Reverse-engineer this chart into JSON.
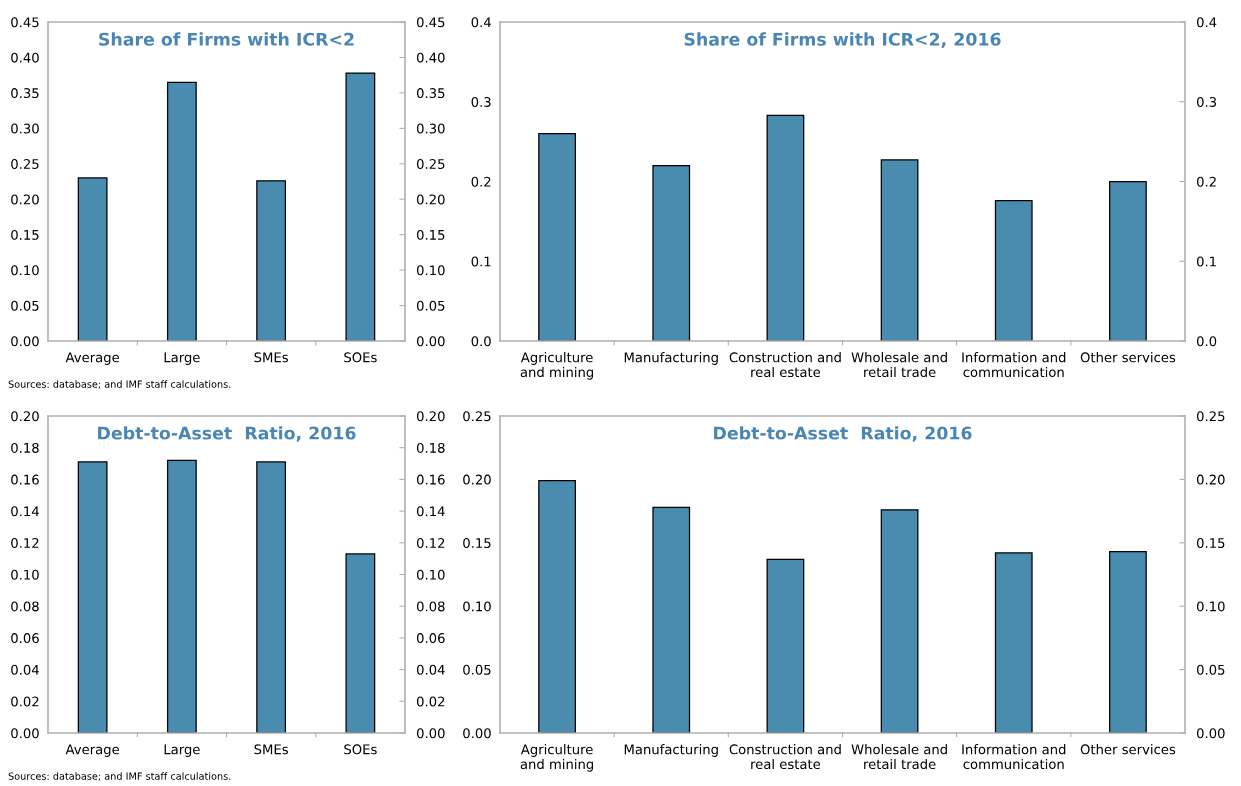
{
  "chart_data": [
    {
      "type": "bar",
      "title": "Share of Firms with ICR<2",
      "categories": [
        "Average",
        "Large",
        "SMEs",
        "SOEs"
      ],
      "values": [
        0.23,
        0.365,
        0.226,
        0.378
      ],
      "color": "#4a8bb0",
      "ylim": [
        0,
        0.45
      ],
      "yticks": [
        {
          "value": 0,
          "label": "0.00"
        },
        {
          "value": 0.05,
          "label": "0.05"
        },
        {
          "value": 0.1,
          "label": "0.10"
        },
        {
          "value": 0.15,
          "label": "0.15"
        },
        {
          "value": 0.2,
          "label": "0.20"
        },
        {
          "value": 0.25,
          "label": "0.25"
        },
        {
          "value": 0.3,
          "label": "0.30"
        },
        {
          "value": 0.35,
          "label": "0.35"
        },
        {
          "value": 0.4,
          "label": "0.40"
        },
        {
          "value": 0.45,
          "label": "0.45"
        }
      ],
      "y2lim": [
        0,
        0.45
      ],
      "y2ticks": [
        {
          "value": 0,
          "label": "0.00"
        },
        {
          "value": 0.05,
          "label": "0.05"
        },
        {
          "value": 0.1,
          "label": "0.10"
        },
        {
          "value": 0.15,
          "label": "0.15"
        },
        {
          "value": 0.2,
          "label": "0.20"
        },
        {
          "value": 0.25,
          "label": "0.25"
        },
        {
          "value": 0.3,
          "label": "0.30"
        },
        {
          "value": 0.35,
          "label": "0.35"
        },
        {
          "value": 0.4,
          "label": "0.40"
        },
        {
          "value": 0.45,
          "label": "0.45"
        }
      ],
      "annotations": [
        "Sources: database; and IMF staff calculations."
      ]
    },
    {
      "type": "bar",
      "title": "Share of Firms with ICR<2, 2016",
      "categories": [
        "Agriculture\nand mining",
        "Manufacturing",
        "Construction and\nreal estate",
        "Wholesale and\nretail trade",
        "Information and\ncommunication",
        "Other services"
      ],
      "values": [
        0.26,
        0.22,
        0.283,
        0.227,
        0.176,
        0.2
      ],
      "color": "#4a8bb0",
      "ylim": [
        0,
        0.4
      ],
      "yticks": [
        {
          "value": 0,
          "label": "0.0"
        },
        {
          "value": 0.1,
          "label": "0.1"
        },
        {
          "value": 0.2,
          "label": "0.2"
        },
        {
          "value": 0.3,
          "label": "0.3"
        },
        {
          "value": 0.4,
          "label": "0.4"
        }
      ],
      "y2lim": [
        0,
        0.4
      ],
      "y2ticks": [
        {
          "value": 0,
          "label": "0.0"
        },
        {
          "value": 0.1,
          "label": "0.1"
        },
        {
          "value": 0.2,
          "label": "0.2"
        },
        {
          "value": 0.3,
          "label": "0.3"
        },
        {
          "value": 0.4,
          "label": "0.4"
        }
      ]
    },
    {
      "type": "bar",
      "title": "Debt-to-Asset  Ratio, 2016",
      "categories": [
        "Average",
        "Large",
        "SMEs",
        "SOEs"
      ],
      "values": [
        0.171,
        0.172,
        0.171,
        0.113
      ],
      "color": "#4a8bb0",
      "ylim": [
        0,
        0.2
      ],
      "yticks": [
        {
          "value": 0,
          "label": "0.00"
        },
        {
          "value": 0.02,
          "label": "0.02"
        },
        {
          "value": 0.04,
          "label": "0.04"
        },
        {
          "value": 0.06,
          "label": "0.06"
        },
        {
          "value": 0.08,
          "label": "0.08"
        },
        {
          "value": 0.1,
          "label": "0.10"
        },
        {
          "value": 0.12,
          "label": "0.12"
        },
        {
          "value": 0.14,
          "label": "0.14"
        },
        {
          "value": 0.16,
          "label": "0.16"
        },
        {
          "value": 0.18,
          "label": "0.18"
        },
        {
          "value": 0.2,
          "label": "0.20"
        }
      ],
      "y2lim": [
        0,
        0.2
      ],
      "y2ticks": [
        {
          "value": 0,
          "label": "0.00"
        },
        {
          "value": 0.02,
          "label": "0.02"
        },
        {
          "value": 0.04,
          "label": "0.04"
        },
        {
          "value": 0.06,
          "label": "0.06"
        },
        {
          "value": 0.08,
          "label": "0.08"
        },
        {
          "value": 0.1,
          "label": "0.10"
        },
        {
          "value": 0.12,
          "label": "0.12"
        },
        {
          "value": 0.14,
          "label": "0.14"
        },
        {
          "value": 0.16,
          "label": "0.16"
        },
        {
          "value": 0.18,
          "label": "0.18"
        },
        {
          "value": 0.2,
          "label": "0.20"
        }
      ],
      "annotations": [
        "Sources: database; and IMF staff calculations."
      ]
    },
    {
      "type": "bar",
      "title": "Debt-to-Asset  Ratio, 2016",
      "categories": [
        "Agriculture\nand mining",
        "Manufacturing",
        "Construction and\nreal estate",
        "Wholesale and\nretail trade",
        "Information and\ncommunication",
        "Other services"
      ],
      "values": [
        0.199,
        0.178,
        0.137,
        0.176,
        0.142,
        0.143
      ],
      "color": "#4a8bb0",
      "ylim": [
        0,
        0.25
      ],
      "yticks": [
        {
          "value": 0,
          "label": "0.00"
        },
        {
          "value": 0.05,
          "label": "0.05"
        },
        {
          "value": 0.1,
          "label": "0.10"
        },
        {
          "value": 0.15,
          "label": "0.15"
        },
        {
          "value": 0.2,
          "label": "0.20"
        },
        {
          "value": 0.25,
          "label": "0.25"
        }
      ],
      "y2lim": [
        0,
        0.25
      ],
      "y2ticks": [
        {
          "value": 0,
          "label": "0.00"
        },
        {
          "value": 0.05,
          "label": "0.05"
        },
        {
          "value": 0.1,
          "label": "0.10"
        },
        {
          "value": 0.15,
          "label": "0.15"
        },
        {
          "value": 0.2,
          "label": "0.20"
        },
        {
          "value": 0.25,
          "label": "0.25"
        }
      ]
    }
  ]
}
